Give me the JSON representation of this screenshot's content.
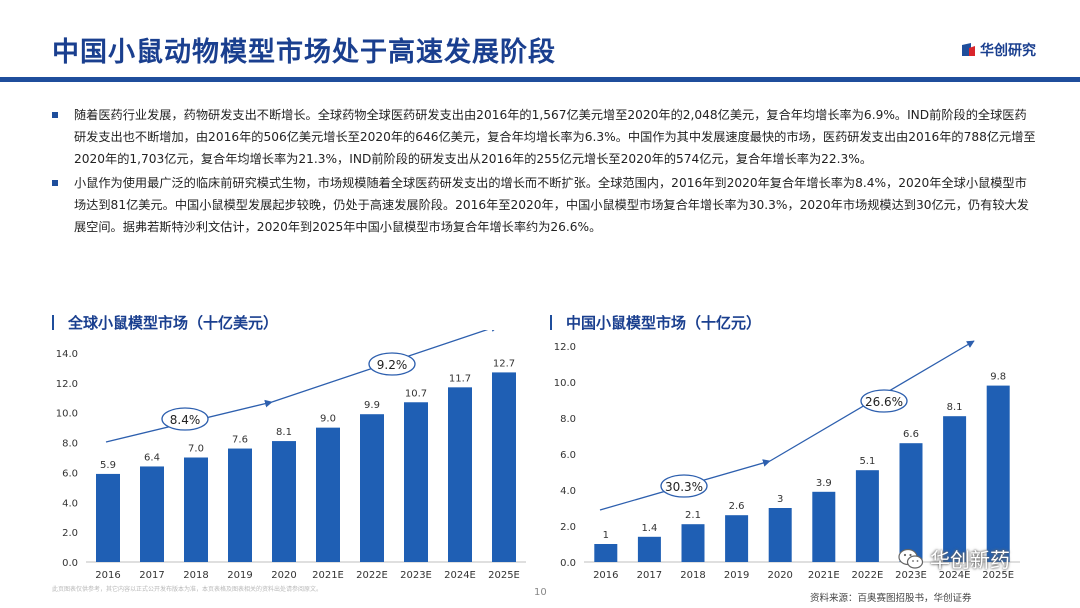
{
  "header": {
    "title": "中国小鼠动物模型市场处于高速发展阶段",
    "logo_text": "华创研究"
  },
  "bullets": [
    "随着医药行业发展，药物研发支出不断增长。全球药物全球医药研发支出由2016年的1,567亿美元增至2020年的2,048亿美元，复合年均增长率为6.9%。IND前阶段的全球医药研发支出也不断增加，由2016年的506亿美元增长至2020年的646亿美元，复合年均增长率为6.3%。中国作为其中发展速度最快的市场，医药研发支出由2016年的788亿元增至2020年的1,703亿元，复合年均增长率为21.3%，IND前阶段的研发支出从2016年的255亿元增长至2020年的574亿元，复合年增长率为22.3%。",
    "小鼠作为使用最广泛的临床前研究模式生物，市场规模随着全球医药研发支出的增长而不断扩张。全球范围内，2016年到2020年复合年增长率为8.4%，2020年全球小鼠模型市场达到81亿美元。中国小鼠模型发展起步较晚，仍处于高速发展阶段。2016年至2020年，中国小鼠模型市场复合年增长率为30.3%，2020年市场规模达到30亿元，仍有较大发展空间。据弗若斯特沙利文估计，2020年到2025年中国小鼠模型市场复合年增长率约为26.6%。"
  ],
  "chart_data": [
    {
      "type": "bar",
      "title": "全球小鼠模型市场（十亿美元）",
      "categories": [
        "2016",
        "2017",
        "2018",
        "2019",
        "2020",
        "2021E",
        "2022E",
        "2023E",
        "2024E",
        "2025E"
      ],
      "values": [
        5.9,
        6.4,
        7.0,
        7.6,
        8.1,
        9.0,
        9.9,
        10.7,
        11.7,
        12.7
      ],
      "value_labels": [
        "5.9",
        "6.4",
        "7.0",
        "7.6",
        "8.1",
        "9.0",
        "9.9",
        "10.7",
        "11.7",
        "12.7"
      ],
      "ylim": [
        0,
        14
      ],
      "yticks": [
        "0.0",
        "2.0",
        "4.0",
        "6.0",
        "8.0",
        "10.0",
        "12.0",
        "14.0"
      ],
      "annotations": [
        "8.4%",
        "9.2%"
      ],
      "bar_color": "#1f5fb4"
    },
    {
      "type": "bar",
      "title": "中国小鼠模型市场（十亿元）",
      "categories": [
        "2016",
        "2017",
        "2018",
        "2019",
        "2020",
        "2021E",
        "2022E",
        "2023E",
        "2024E",
        "2025E"
      ],
      "values": [
        1,
        1.4,
        2.1,
        2.6,
        3,
        3.9,
        5.1,
        6.6,
        8.1,
        9.8
      ],
      "value_labels": [
        "1",
        "1.4",
        "2.1",
        "2.6",
        "3",
        "3.9",
        "5.1",
        "6.6",
        "8.1",
        "9.8"
      ],
      "ylim": [
        0,
        12
      ],
      "yticks": [
        "0.0",
        "2.0",
        "4.0",
        "6.0",
        "8.0",
        "10.0",
        "12.0"
      ],
      "annotations": [
        "30.3%",
        "26.6%"
      ],
      "bar_color": "#1f5fb4"
    }
  ],
  "footer": {
    "note": "此页图表仅供参考，其它内容以正式公开发布版本为准，本页表格及图表相关的资料出处请参阅原文。",
    "page_number": "10",
    "source": "资料来源：百奥赛图招股书，华创证券"
  },
  "watermark": {
    "text": "华创新药"
  },
  "icons": {
    "logo": "logo-mark-icon",
    "wechat": "wechat-icon"
  },
  "colors": {
    "title": "#1a3f8f",
    "rule": "#1f4e9c",
    "bar": "#1f5fb4",
    "arrow": "#2d5fae"
  }
}
